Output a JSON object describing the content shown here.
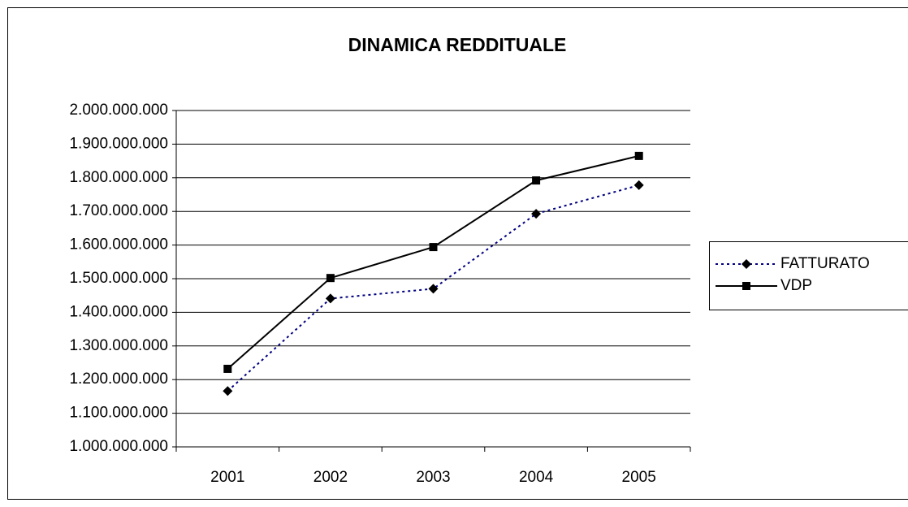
{
  "chart_data": {
    "type": "line",
    "title": "DINAMICA REDDITUALE",
    "categories": [
      "2001",
      "2002",
      "2003",
      "2004",
      "2005"
    ],
    "series": [
      {
        "name": "FATTURATO",
        "color": "#000080",
        "marker": "diamond",
        "dash": "dotted",
        "values": [
          1166000000,
          1441000000,
          1470000000,
          1693000000,
          1778000000
        ]
      },
      {
        "name": "VDP",
        "color": "#000000",
        "marker": "square",
        "dash": "solid",
        "values": [
          1232000000,
          1502000000,
          1594000000,
          1792000000,
          1865000000
        ]
      }
    ],
    "ylim": [
      1000000000,
      2000000000
    ],
    "yticks": [
      {
        "value": 1000000000,
        "label": "1.000.000.000"
      },
      {
        "value": 1100000000,
        "label": "1.100.000.000"
      },
      {
        "value": 1200000000,
        "label": "1.200.000.000"
      },
      {
        "value": 1300000000,
        "label": "1.300.000.000"
      },
      {
        "value": 1400000000,
        "label": "1.400.000.000"
      },
      {
        "value": 1500000000,
        "label": "1.500.000.000"
      },
      {
        "value": 1600000000,
        "label": "1.600.000.000"
      },
      {
        "value": 1700000000,
        "label": "1.700.000.000"
      },
      {
        "value": 1800000000,
        "label": "1.800.000.000"
      },
      {
        "value": 1900000000,
        "label": "1.900.000.000"
      },
      {
        "value": 2000000000,
        "label": "2.000.000.000"
      }
    ],
    "grid": true,
    "legend": "right"
  }
}
